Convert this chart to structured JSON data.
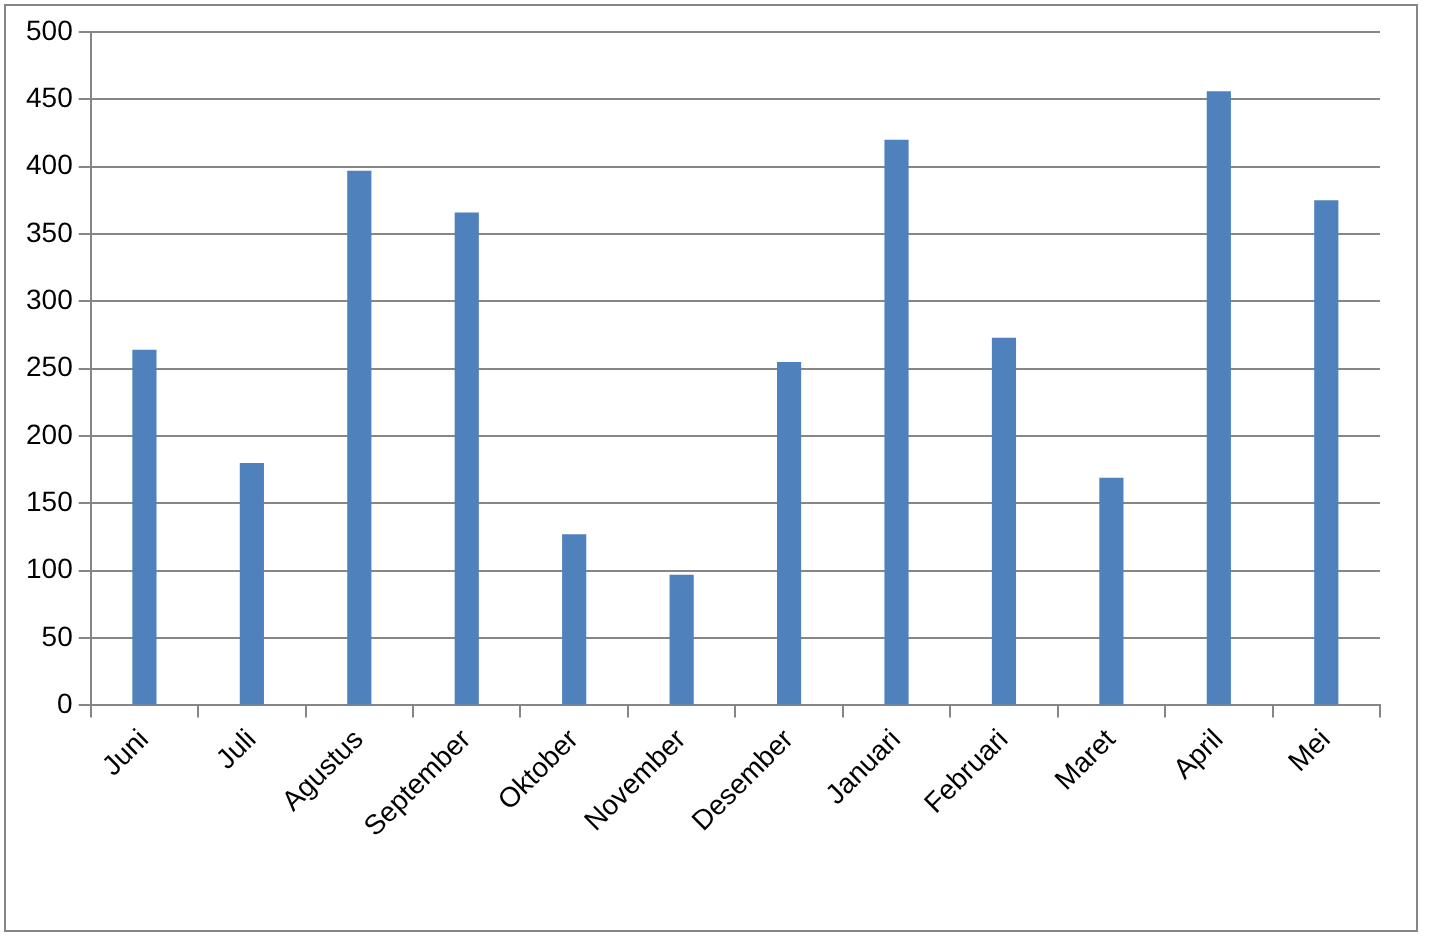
{
  "chart_data": {
    "type": "bar",
    "categories": [
      "Juni",
      "Juli",
      "Agustus",
      "September",
      "Oktober",
      "November",
      "Desember",
      "Januari",
      "Februari",
      "Maret",
      "April",
      "Mei"
    ],
    "values": [
      264,
      180,
      397,
      366,
      127,
      97,
      255,
      420,
      273,
      169,
      456,
      375
    ],
    "color": "#4f81bd",
    "ylim": [
      0,
      500
    ],
    "yticks": [
      0,
      50,
      100,
      150,
      200,
      250,
      300,
      350,
      400,
      450,
      500
    ],
    "grid": "y",
    "legend": false
  }
}
